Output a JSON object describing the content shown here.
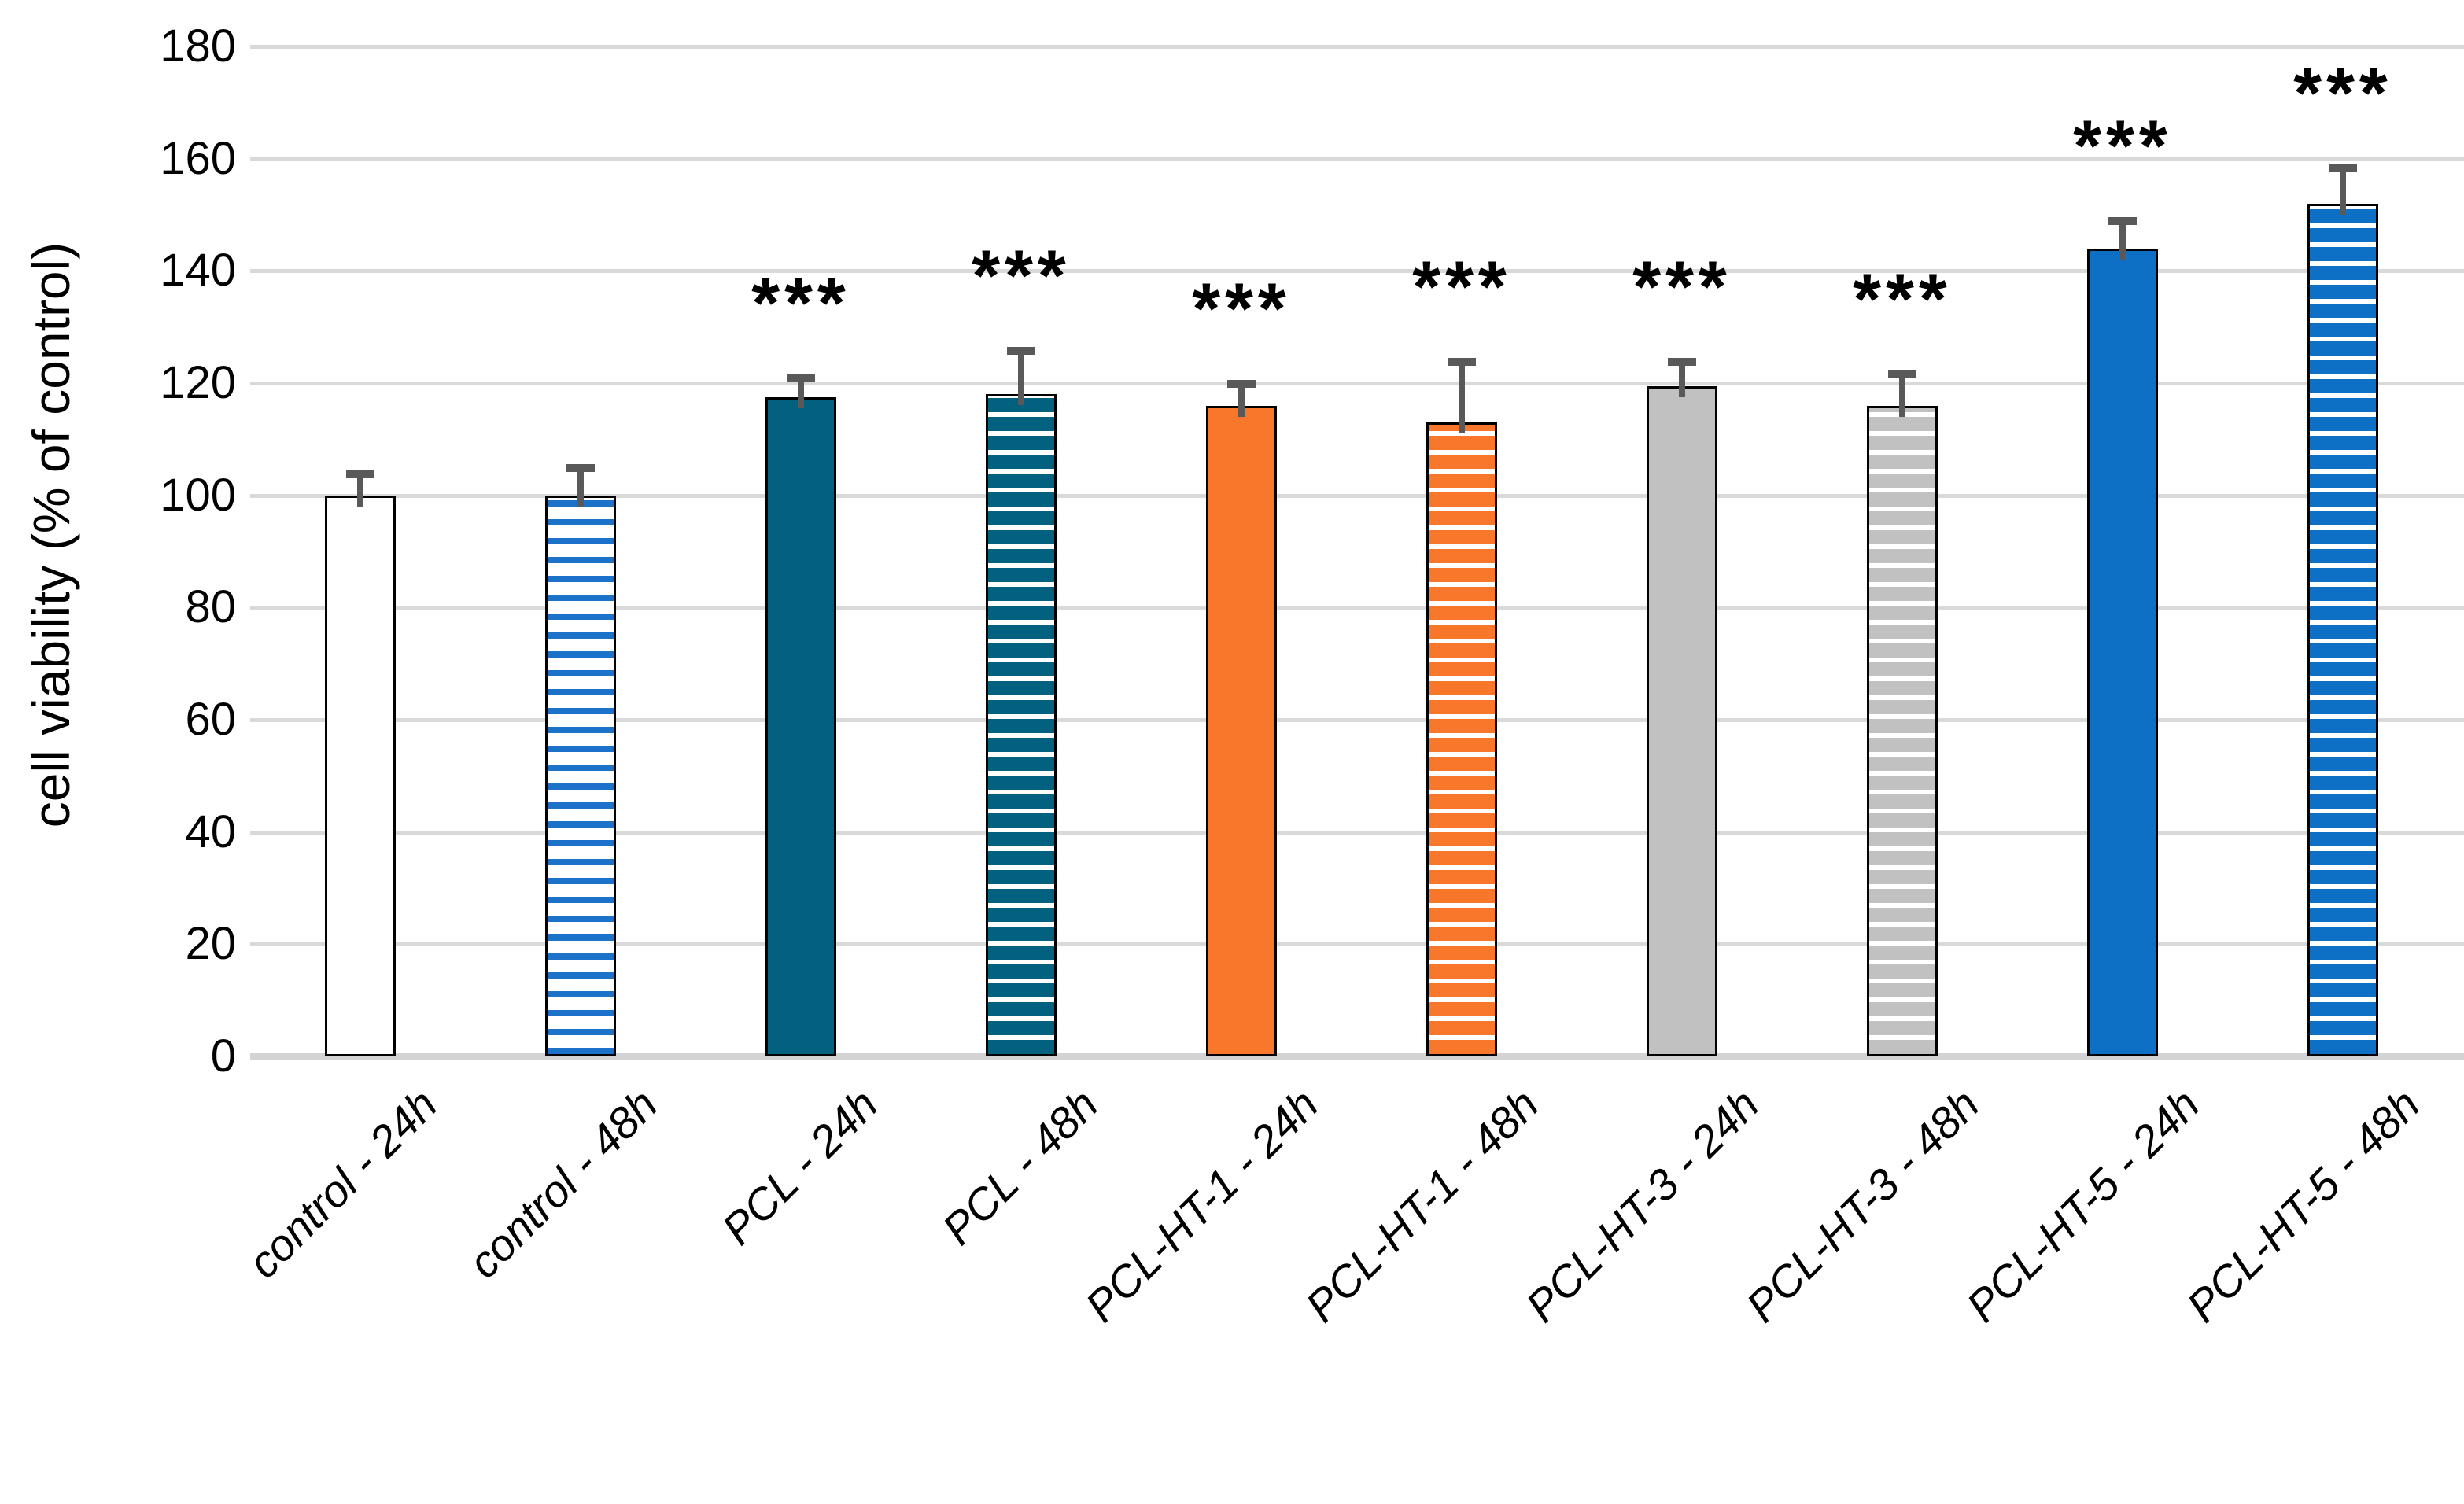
{
  "chart_data": {
    "type": "bar",
    "title": "",
    "xlabel": "",
    "ylabel": "cell viability (% of control)",
    "ylim": [
      0,
      180
    ],
    "yticks": [
      0,
      20,
      40,
      60,
      80,
      100,
      120,
      140,
      160,
      180
    ],
    "grid": true,
    "legend": "none",
    "significance_marker": "***",
    "categories": [
      "control - 24h",
      "control - 48h",
      "PCL - 24h",
      "PCL - 48h",
      "PCL-HT-1 - 24h",
      "PCL-HT-1 - 48h",
      "PCL-HT-3 - 24h",
      "PCL-HT-3 - 48h",
      "PCL-HT-5 - 24h",
      "PCL-HT-5 - 48h"
    ],
    "bars": [
      {
        "label": "control - 24h",
        "value": 100,
        "error": 4.5,
        "sig": "",
        "color": "#FFFFFF",
        "pattern": "solid"
      },
      {
        "label": "control - 48h",
        "value": 100,
        "error": 5.5,
        "sig": "",
        "color": "#1B72C8",
        "pattern": "stripe-light"
      },
      {
        "label": "PCL - 24h",
        "value": 117.5,
        "error": 4.0,
        "sig": "***",
        "color": "#01617F",
        "pattern": "solid"
      },
      {
        "label": "PCL - 48h",
        "value": 118,
        "error": 8.5,
        "sig": "***",
        "color": "#01617F",
        "pattern": "stripe"
      },
      {
        "label": "PCL-HT-1 - 24h",
        "value": 116,
        "error": 4.5,
        "sig": "***",
        "color": "#F9772A",
        "pattern": "solid"
      },
      {
        "label": "PCL-HT-1 - 48h",
        "value": 113,
        "error": 11.5,
        "sig": "***",
        "color": "#F9772A",
        "pattern": "stripe"
      },
      {
        "label": "PCL-HT-3 - 24h",
        "value": 119.5,
        "error": 5.0,
        "sig": "***",
        "color": "#C1C1C1",
        "pattern": "solid"
      },
      {
        "label": "PCL-HT-3 - 48h",
        "value": 116,
        "error": 6.3,
        "sig": "***",
        "color": "#C1C1C1",
        "pattern": "stripe"
      },
      {
        "label": "PCL-HT-5 - 24h",
        "value": 144,
        "error": 5.6,
        "sig": "***",
        "color": "#0D70C4",
        "pattern": "solid"
      },
      {
        "label": "PCL-HT-5 - 48h",
        "value": 152,
        "error": 7.0,
        "sig": "***",
        "color": "#0D70C4",
        "pattern": "stripe"
      }
    ],
    "colors": {
      "gridline": "#D9D9D9",
      "axis_baseline": "#D3D3D3",
      "error_bar": "#595959",
      "bar_border": "#000000",
      "text": "#000000",
      "background": "#FFFFFF"
    }
  }
}
